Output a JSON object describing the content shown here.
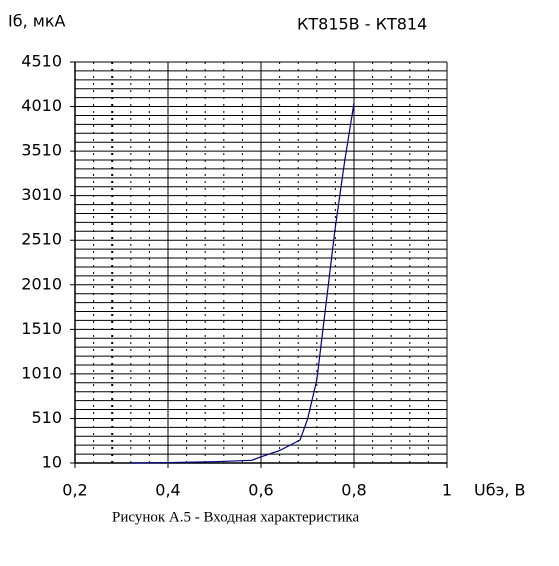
{
  "chart_data": {
    "type": "line",
    "title": "КТ815В - КТ814",
    "y_label": "Iб, мкА",
    "x_label": "Uбэ, В",
    "caption": "Рисунок А.5 - Входная характеристика",
    "x": [
      0.32,
      0.4,
      0.5,
      0.58,
      0.6,
      0.64,
      0.67,
      0.684,
      0.7,
      0.72,
      0.74,
      0.759,
      0.78,
      0.8
    ],
    "series": [
      {
        "color": "#000080",
        "values": [
          10,
          15,
          25,
          40,
          80,
          150,
          230,
          268,
          500,
          941,
          1800,
          2625,
          3400,
          4050
        ]
      }
    ],
    "xlim": [
      0.2,
      1
    ],
    "xticks": [
      {
        "value": 0.2,
        "label": "0,2"
      },
      {
        "value": 0.4,
        "label": "0,4"
      },
      {
        "value": 0.6,
        "label": "0,6"
      },
      {
        "value": 0.8,
        "label": "0,8"
      },
      1
    ],
    "ylim": [
      10,
      4510
    ],
    "yticks": [
      10,
      510,
      1010,
      1510,
      2010,
      2510,
      3010,
      3510,
      4010,
      4510
    ],
    "grid": true
  }
}
